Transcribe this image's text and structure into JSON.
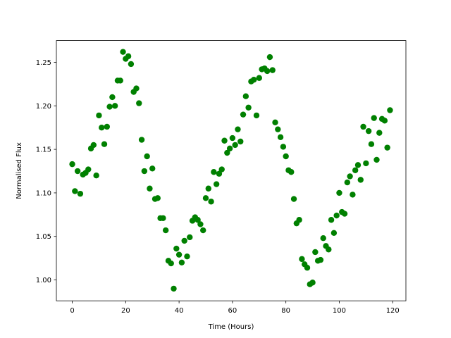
{
  "chart_data": {
    "type": "scatter",
    "x_label": "Time (Hours)",
    "y_label": "Normalised Flux",
    "color": "#008000",
    "grid": false,
    "x": [
      0,
      1,
      2,
      3,
      4,
      5,
      6,
      7,
      8,
      9,
      10,
      11,
      12,
      13,
      14,
      15,
      16,
      17,
      18,
      19,
      20,
      21,
      22,
      23,
      24,
      25,
      26,
      27,
      28,
      29,
      30,
      31,
      32,
      33,
      34,
      35,
      36,
      37,
      38,
      39,
      40,
      41,
      42,
      43,
      44,
      45,
      46,
      47,
      48,
      49,
      50,
      51,
      52,
      53,
      54,
      55,
      56,
      57,
      58,
      59,
      60,
      61,
      62,
      63,
      64,
      65,
      66,
      67,
      68,
      69,
      70,
      71,
      72,
      73,
      74,
      75,
      76,
      77,
      78,
      79,
      80,
      81,
      82,
      83,
      84,
      85,
      86,
      87,
      88,
      89,
      90,
      91,
      92,
      93,
      94,
      95,
      96,
      97,
      98,
      99,
      100,
      101,
      102,
      103,
      104,
      105,
      106,
      107,
      108,
      109,
      110,
      111,
      112,
      113,
      114,
      115,
      116,
      117,
      118,
      119
    ],
    "values": [
      1.133,
      1.102,
      1.125,
      1.099,
      1.121,
      1.123,
      1.127,
      1.151,
      1.155,
      1.12,
      1.189,
      1.175,
      1.156,
      1.176,
      1.199,
      1.21,
      1.2,
      1.229,
      1.229,
      1.262,
      1.254,
      1.257,
      1.248,
      1.216,
      1.22,
      1.203,
      1.161,
      1.125,
      1.142,
      1.105,
      1.128,
      1.093,
      1.094,
      1.071,
      1.071,
      1.057,
      1.022,
      1.019,
      0.99,
      1.036,
      1.029,
      1.02,
      1.045,
      1.027,
      1.049,
      1.068,
      1.072,
      1.069,
      1.064,
      1.057,
      1.094,
      1.105,
      1.09,
      1.124,
      1.11,
      1.122,
      1.127,
      1.16,
      1.146,
      1.151,
      1.163,
      1.155,
      1.173,
      1.159,
      1.19,
      1.211,
      1.198,
      1.228,
      1.23,
      1.189,
      1.232,
      1.242,
      1.243,
      1.24,
      1.256,
      1.241,
      1.181,
      1.173,
      1.164,
      1.153,
      1.142,
      1.126,
      1.124,
      1.093,
      1.065,
      1.069,
      1.024,
      1.018,
      1.014,
      0.995,
      0.997,
      1.032,
      1.022,
      1.023,
      1.048,
      1.039,
      1.035,
      1.069,
      1.054,
      1.074,
      1.1,
      1.078,
      1.076,
      1.112,
      1.119,
      1.098,
      1.126,
      1.132,
      1.115,
      1.176,
      1.134,
      1.171,
      1.156,
      1.186,
      1.138,
      1.169,
      1.185,
      1.183,
      1.152,
      1.195
    ],
    "xlim": [
      -5.95,
      124.95
    ],
    "ylim": [
      0.976,
      1.275
    ],
    "xticks": [
      0,
      20,
      40,
      60,
      80,
      100,
      120
    ],
    "yticks": [
      {
        "value": 1,
        "label": "1.00"
      },
      1.05,
      {
        "value": 1.1,
        "label": "1.10"
      },
      1.15,
      {
        "value": 1.2,
        "label": "1.20"
      },
      1.25
    ]
  }
}
